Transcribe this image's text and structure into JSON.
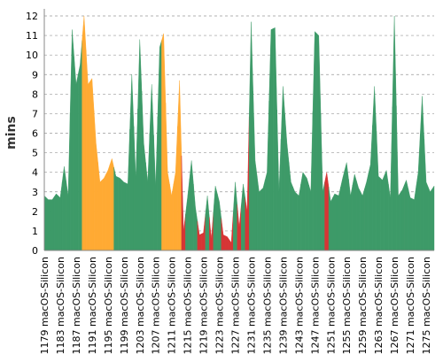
{
  "chart_data": {
    "type": "area",
    "y_label": "mins",
    "categories": [
      "#1179 macOS-Silicon",
      null,
      null,
      null,
      "#1183 macOS-Silicon",
      null,
      null,
      null,
      "#1187 macOS-Silicon",
      null,
      null,
      null,
      "#1191 macOS-Silicon",
      null,
      null,
      null,
      "#1195 macOS-Silicon",
      null,
      null,
      null,
      "#1199 macOS-Silicon",
      null,
      null,
      null,
      "#1203 macOS-Silicon",
      null,
      null,
      null,
      "#1207 macOS-Silicon",
      null,
      null,
      null,
      "#1211 macOS-Silicon",
      null,
      null,
      null,
      "#1215 macOS-Silicon",
      null,
      null,
      null,
      "#1219 macOS-Silicon",
      null,
      null,
      null,
      "#1223 macOS-Silicon",
      null,
      null,
      null,
      "#1227 macOS-Silicon",
      null,
      null,
      null,
      "#1231 macOS-Silicon",
      null,
      null,
      null,
      "#1235 macOS-Silicon",
      null,
      null,
      null,
      "#1239 macOS-Silicon",
      null,
      null,
      null,
      "#1243 macOS-Silicon",
      null,
      null,
      null,
      "#1247 macOS-Silicon",
      null,
      null,
      null,
      "#1251 macOS-Silicon",
      null,
      null,
      null,
      "#1255 macOS-Silicon",
      null,
      null,
      null,
      "#1259 macOS-Silicon",
      null,
      null,
      null,
      "#1263 macOS-Silicon",
      null,
      null,
      null,
      "#1267 macOS-Silicon",
      null,
      null,
      null,
      "#1271 macOS-Silicon",
      null,
      null,
      null,
      "#1275 macOS-Silicon",
      null,
      null
    ],
    "values": [
      2.8,
      2.6,
      2.6,
      2.9,
      2.7,
      4.3,
      2.8,
      11.3,
      8.5,
      9.5,
      12,
      8.5,
      8.8,
      5.5,
      3.5,
      3.7,
      4.1,
      4.7,
      3.8,
      3.7,
      3.5,
      3.4,
      9,
      3.7,
      10.8,
      5.5,
      3.5,
      8.5,
      3.3,
      10.4,
      11.1,
      4,
      2.8,
      4,
      8.7,
      1,
      2.7,
      4.6,
      2.2,
      0.8,
      0.9,
      2.8,
      0.6,
      3.3,
      2.5,
      0.8,
      0.7,
      0.4,
      3.5,
      1.2,
      3.4,
      2,
      11.7,
      4.6,
      3,
      3.2,
      4,
      11.3,
      11.4,
      3,
      8.4,
      5.5,
      3.5,
      3,
      2.8,
      4,
      3.7,
      3,
      11.2,
      11,
      3,
      4,
      2.5,
      2.9,
      2.8,
      3.7,
      4.5,
      2.8,
      3.9,
      3.2,
      2.8,
      3.5,
      4.4,
      8.4,
      3.8,
      3.6,
      4.1,
      2.7,
      12,
      2.8,
      3.1,
      3.6,
      2.7,
      2.6,
      4,
      7.9,
      3.5,
      3,
      3.3
    ],
    "colors": [
      "#3d9a68",
      "#3d9a68",
      "#3d9a68",
      "#3d9a68",
      "#3d9a68",
      "#3d9a68",
      "#3d9a68",
      "#3d9a68",
      "#3d9a68",
      "#3d9a68",
      "#ffaa33",
      "#ffaa33",
      "#ffaa33",
      "#ffaa33",
      "#ffaa33",
      "#ffaa33",
      "#ffaa33",
      "#ffaa33",
      "#3d9a68",
      "#3d9a68",
      "#3d9a68",
      "#3d9a68",
      "#3d9a68",
      "#3d9a68",
      "#3d9a68",
      "#3d9a68",
      "#3d9a68",
      "#3d9a68",
      "#3d9a68",
      "#3d9a68",
      "#ffaa33",
      "#ffaa33",
      "#ffaa33",
      "#ffaa33",
      "#ffaa33",
      "#d63535",
      "#3d9a68",
      "#3d9a68",
      "#3d9a68",
      "#d63535",
      "#d63535",
      "#3d9a68",
      "#d63535",
      "#3d9a68",
      "#3d9a68",
      "#d63535",
      "#d63535",
      "#d63535",
      "#3d9a68",
      "#d63535",
      "#3d9a68",
      "#d63535",
      "#3d9a68",
      "#3d9a68",
      "#3d9a68",
      "#3d9a68",
      "#3d9a68",
      "#3d9a68",
      "#3d9a68",
      "#3d9a68",
      "#3d9a68",
      "#3d9a68",
      "#3d9a68",
      "#3d9a68",
      "#3d9a68",
      "#3d9a68",
      "#3d9a68",
      "#3d9a68",
      "#3d9a68",
      "#3d9a68",
      "#3d9a68",
      "#d63535",
      "#3d9a68",
      "#3d9a68",
      "#3d9a68",
      "#3d9a68",
      "#3d9a68",
      "#3d9a68",
      "#3d9a68",
      "#3d9a68",
      "#3d9a68",
      "#3d9a68",
      "#3d9a68",
      "#3d9a68",
      "#3d9a68",
      "#3d9a68",
      "#3d9a68",
      "#3d9a68",
      "#3d9a68",
      "#3d9a68",
      "#3d9a68",
      "#3d9a68",
      "#3d9a68",
      "#3d9a68",
      "#3d9a68",
      "#3d9a68",
      "#3d9a68",
      "#3d9a68",
      "#3d9a68"
    ],
    "ylim": [
      0,
      12
    ],
    "yticks": [
      0,
      1,
      2,
      3,
      4,
      5,
      6,
      7,
      8,
      9,
      10,
      11,
      12
    ],
    "grid": true
  }
}
